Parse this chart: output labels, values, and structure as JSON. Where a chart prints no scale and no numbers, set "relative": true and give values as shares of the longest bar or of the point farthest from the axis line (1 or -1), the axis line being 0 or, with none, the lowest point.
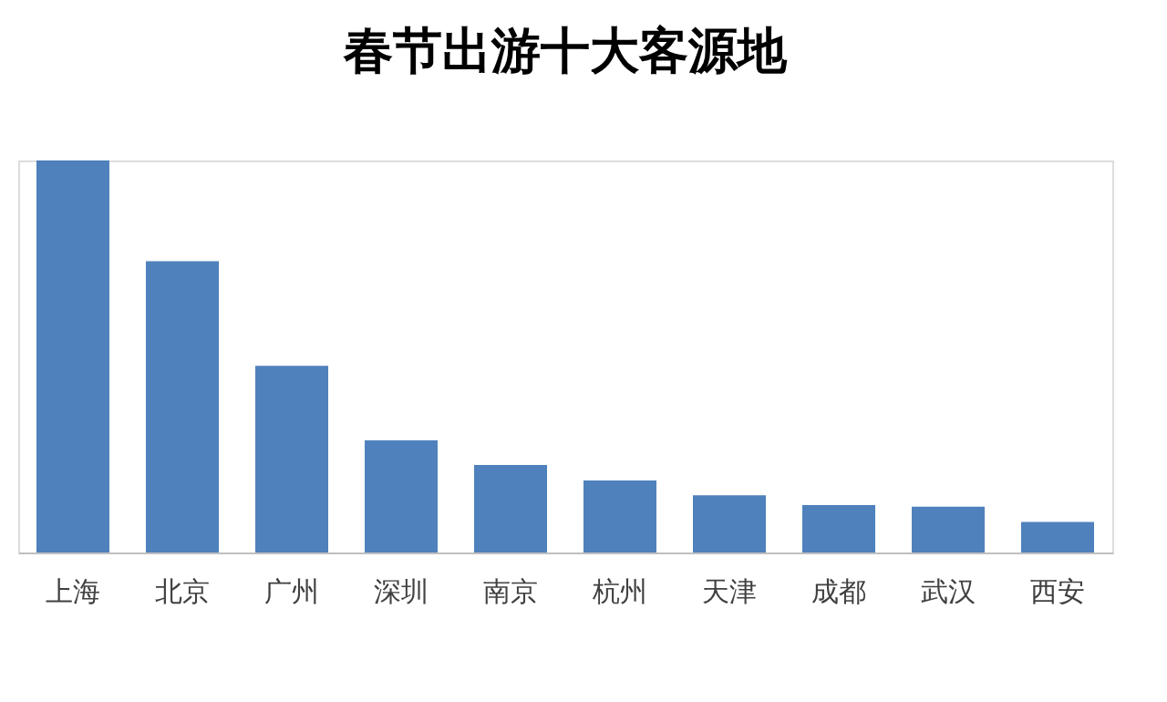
{
  "chart_data": {
    "type": "bar",
    "title": "春节出游十大客源地",
    "relative": true,
    "color": "#4f81bd",
    "categories": [
      "上海",
      "北京",
      "广州",
      "深圳",
      "南京",
      "杭州",
      "天津",
      "成都",
      "武汉",
      "西安"
    ],
    "values": [
      1,
      0.743,
      0.476,
      0.286,
      0.223,
      0.184,
      0.146,
      0.121,
      0.117,
      0.078
    ],
    "grid": false
  }
}
